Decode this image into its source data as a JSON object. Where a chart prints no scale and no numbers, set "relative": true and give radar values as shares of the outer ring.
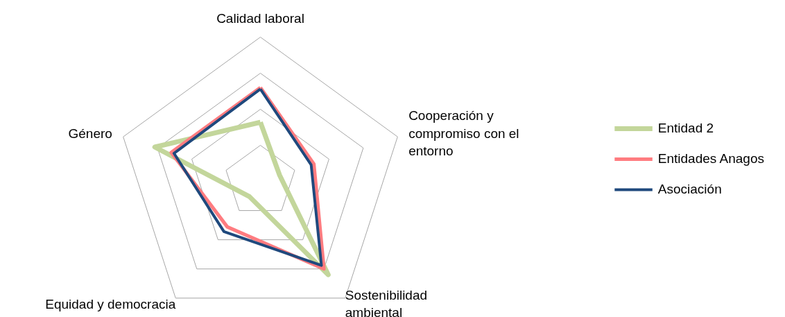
{
  "chart_data": {
    "type": "radar",
    "relative": true,
    "categories": [
      "Calidad laboral",
      "Cooperación y compromiso con el entorno",
      "Sostenibilidad ambiental",
      "Equidad y democracia",
      "Género"
    ],
    "series": [
      {
        "name": "Entidad 2",
        "color": "#c3d69b",
        "values": [
          0.41,
          0.14,
          0.8,
          0.13,
          0.77
        ]
      },
      {
        "name": "Entidades Anagos",
        "color": "#ff7c80",
        "values": [
          0.65,
          0.39,
          0.75,
          0.39,
          0.65
        ]
      },
      {
        "name": "Asociación",
        "color": "#1f497d",
        "values": [
          0.64,
          0.37,
          0.72,
          0.43,
          0.63
        ]
      }
    ],
    "grid": true,
    "legend": "right"
  }
}
